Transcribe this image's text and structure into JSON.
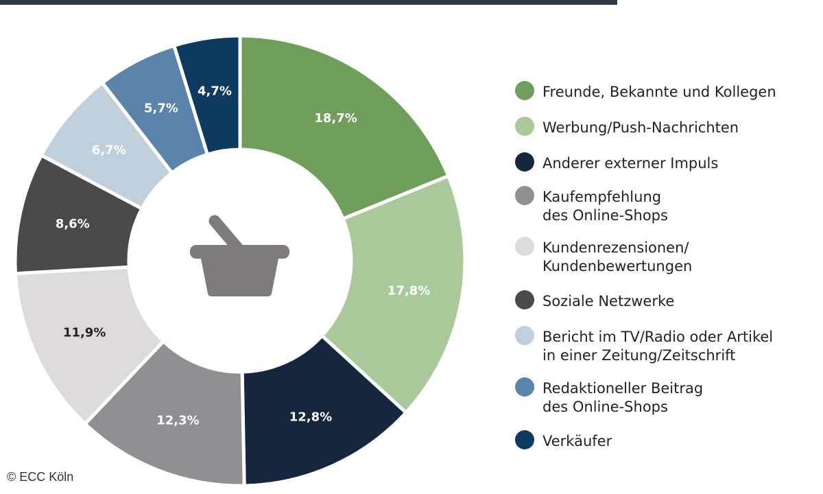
{
  "chart_data": {
    "type": "pie",
    "subtype": "donut",
    "title": "",
    "slices": [
      {
        "label": "Freunde, Bekannte und Kollegen",
        "value": 18.7,
        "display": "18,7%",
        "color": "#6f9f5b",
        "text_color": "#ffffff"
      },
      {
        "label": "Werbung/Push-Nachrichten",
        "value": 17.8,
        "display": "17,8%",
        "color": "#a9c99b",
        "text_color": "#ffffff"
      },
      {
        "label": "Anderer externer Impuls",
        "value": 12.8,
        "display": "12,8%",
        "color": "#16263f",
        "text_color": "#ffffff"
      },
      {
        "label": "Kaufempfehlung des Online-Shops",
        "value": 12.3,
        "display": "12,3%",
        "color": "#8f8f95",
        "text_color": "#ffffff"
      },
      {
        "label": "Kundenrezensionen/ Kundenbewertungen",
        "value": 11.9,
        "display": "11,9%",
        "color": "#dfdada",
        "text_color": "#222222"
      },
      {
        "label": "Soziale Netzwerke",
        "value": 8.6,
        "display": "8,6%",
        "color": "#4a4a4a",
        "text_color": "#ffffff"
      },
      {
        "label": "Bericht im TV/Radio oder Artikel in einer Zeitung/Zeitschrift",
        "value": 6.7,
        "display": "6,7%",
        "color": "#bfcfdc",
        "text_color": "#ffffff"
      },
      {
        "label": "Redaktioneller Beitrag des Online-Shops",
        "value": 5.7,
        "display": "5,7%",
        "color": "#5b84ad",
        "text_color": "#ffffff"
      },
      {
        "label": "Verkäufer",
        "value": 4.7,
        "display": "4,7%",
        "color": "#0d3a5f",
        "text_color": "#ffffff"
      }
    ],
    "legend": {
      "placement": "right",
      "entries": [
        {
          "lines": [
            "Freunde, Bekannte und Kollegen"
          ],
          "color": "#6f9f5b"
        },
        {
          "lines": [
            "Werbung/Push-Nachrichten"
          ],
          "color": "#a9c99b"
        },
        {
          "lines": [
            "Anderer externer Impuls"
          ],
          "color": "#16263f"
        },
        {
          "lines": [
            "Kaufempfehlung",
            "des Online-Shops"
          ],
          "color": "#8f8f95"
        },
        {
          "lines": [
            "Kundenrezensionen/",
            "Kundenbewertungen"
          ],
          "color": "#dfdada"
        },
        {
          "lines": [
            "Soziale Netzwerke"
          ],
          "color": "#4a4a4a"
        },
        {
          "lines": [
            "Bericht im TV/Radio oder Artikel",
            "in einer Zeitung/Zeitschrift"
          ],
          "color": "#bfcfdc"
        },
        {
          "lines": [
            "Redaktioneller Beitrag",
            "des Online-Shops"
          ],
          "color": "#5b84ad"
        },
        {
          "lines": [
            "Verkäufer"
          ],
          "color": "#0d3a5f"
        }
      ]
    },
    "center_icon": "shopping-basket-icon",
    "center_icon_color": "#7f7b7c"
  },
  "copyright": "© ECC Köln",
  "header_strip_color": "#2e3a46"
}
